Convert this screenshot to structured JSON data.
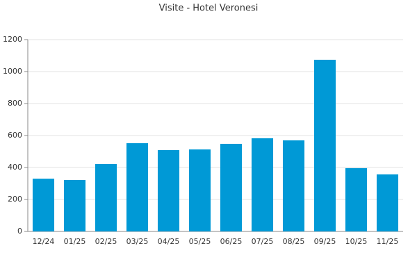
{
  "chart_data": {
    "type": "bar",
    "title": "Visite - Hotel Veronesi",
    "categories": [
      "12/24",
      "01/25",
      "02/25",
      "03/25",
      "04/25",
      "05/25",
      "06/25",
      "07/25",
      "08/25",
      "09/25",
      "10/25",
      "11/25"
    ],
    "values": [
      330,
      322,
      422,
      552,
      509,
      513,
      548,
      583,
      570,
      1074,
      396,
      357
    ],
    "color": "#0099d6",
    "ylim": [
      0,
      1200
    ],
    "yticks": [
      0,
      200,
      400,
      600,
      800,
      1000,
      1200
    ],
    "grid": true
  }
}
